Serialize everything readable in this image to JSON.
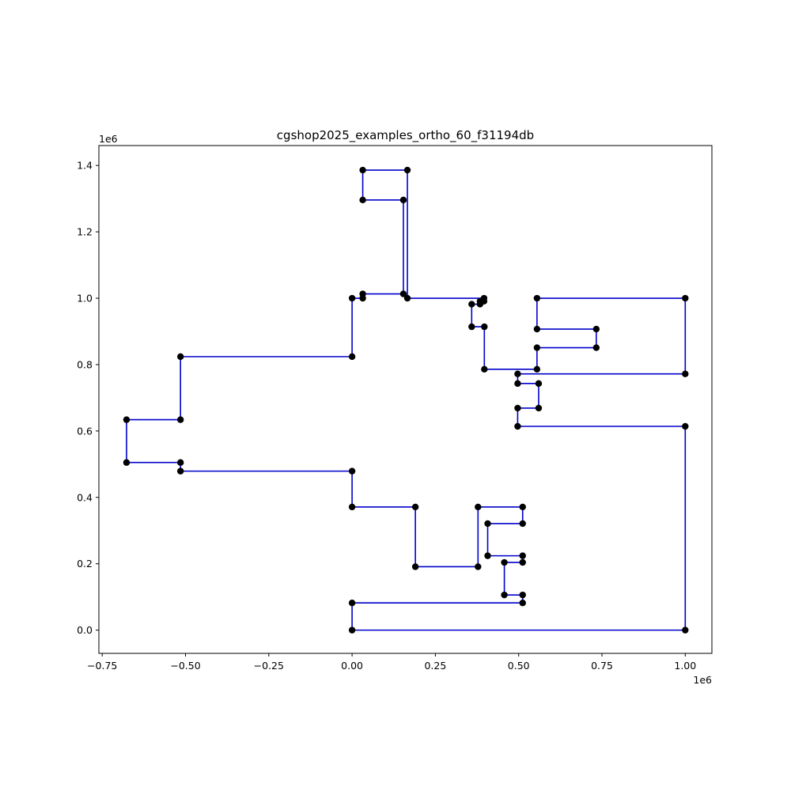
{
  "chart_data": {
    "type": "line",
    "title": "cgshop2025_examples_ortho_60_f31194db",
    "xlabel": "",
    "ylabel": "",
    "x_offset_label": "1e6",
    "y_offset_label": "1e6",
    "xlim": [
      -0.76,
      1.08
    ],
    "ylim": [
      -0.07,
      1.46
    ],
    "xticks": [
      -0.75,
      -0.5,
      -0.25,
      0.0,
      0.25,
      0.5,
      0.75,
      1.0
    ],
    "xtick_labels": [
      "−0.75",
      "−0.50",
      "−0.25",
      "0.00",
      "0.25",
      "0.50",
      "0.75",
      "1.00"
    ],
    "yticks": [
      0.0,
      0.2,
      0.4,
      0.6,
      0.8,
      1.0,
      1.2,
      1.4
    ],
    "ytick_labels": [
      "0.0",
      "0.2",
      "0.4",
      "0.6",
      "0.8",
      "1.0",
      "1.2",
      "1.4"
    ],
    "grid": false,
    "line_color": "#0000cc",
    "point_color": "#000000",
    "points": [
      [
        0.0,
        0.0
      ],
      [
        1.0,
        0.0
      ],
      [
        1.0,
        0.614
      ],
      [
        0.497,
        0.614
      ],
      [
        0.497,
        0.669
      ],
      [
        0.56,
        0.669
      ],
      [
        0.56,
        0.743
      ],
      [
        0.497,
        0.743
      ],
      [
        0.497,
        0.772
      ],
      [
        1.0,
        0.772
      ],
      [
        1.0,
        1.0
      ],
      [
        0.555,
        1.0
      ],
      [
        0.555,
        0.907
      ],
      [
        0.733,
        0.907
      ],
      [
        0.733,
        0.851
      ],
      [
        0.555,
        0.851
      ],
      [
        0.555,
        0.786
      ],
      [
        0.397,
        0.786
      ],
      [
        0.397,
        0.914
      ],
      [
        0.359,
        0.914
      ],
      [
        0.359,
        0.982
      ],
      [
        0.384,
        0.982
      ],
      [
        0.384,
        0.991
      ],
      [
        0.396,
        0.991
      ],
      [
        0.396,
        1.0
      ],
      [
        0.166,
        1.0
      ],
      [
        0.166,
        1.386
      ],
      [
        0.032,
        1.386
      ],
      [
        0.032,
        1.296
      ],
      [
        0.154,
        1.296
      ],
      [
        0.154,
        1.013
      ],
      [
        0.032,
        1.013
      ],
      [
        0.032,
        1.0
      ],
      [
        0.0,
        1.0
      ],
      [
        0.0,
        0.824
      ],
      [
        -0.515,
        0.824
      ],
      [
        -0.515,
        0.634
      ],
      [
        -0.677,
        0.634
      ],
      [
        -0.677,
        0.505
      ],
      [
        -0.515,
        0.505
      ],
      [
        -0.515,
        0.479
      ],
      [
        0.0,
        0.479
      ],
      [
        0.0,
        0.371
      ],
      [
        0.19,
        0.371
      ],
      [
        0.19,
        0.191
      ],
      [
        0.378,
        0.191
      ],
      [
        0.378,
        0.371
      ],
      [
        0.512,
        0.371
      ],
      [
        0.512,
        0.321
      ],
      [
        0.407,
        0.321
      ],
      [
        0.407,
        0.224
      ],
      [
        0.512,
        0.224
      ],
      [
        0.512,
        0.204
      ],
      [
        0.457,
        0.204
      ],
      [
        0.457,
        0.106
      ],
      [
        0.512,
        0.106
      ],
      [
        0.512,
        0.082
      ],
      [
        0.0,
        0.082
      ]
    ],
    "closed": true
  }
}
